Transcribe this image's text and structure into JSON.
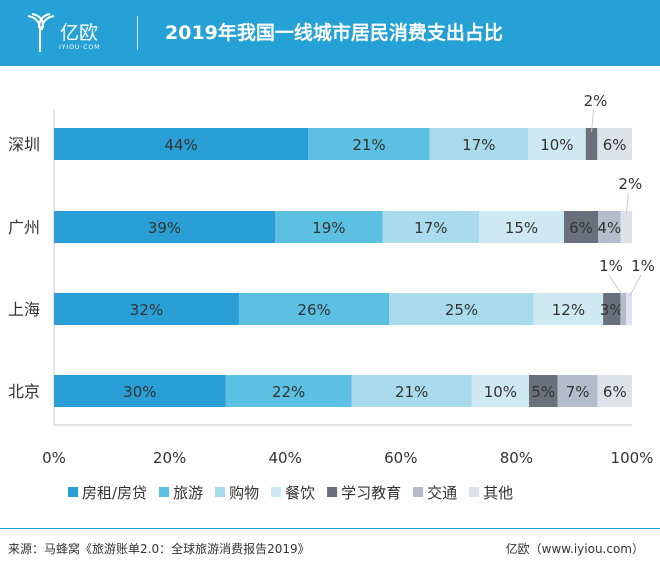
{
  "header": {
    "logo_text": "亿欧",
    "logo_sub": "IYIOU·COM",
    "title": "2019年我国一线城市居民消费支出占比"
  },
  "footer": {
    "source": "来源：马蜂窝《旅游账单2.0：全球旅游消费报告2019》",
    "brand": "亿欧（www.iyiou.com）"
  },
  "chart_data": {
    "type": "bar",
    "orientation": "horizontal",
    "stacked": true,
    "categories": [
      "深圳",
      "广州",
      "上海",
      "北京"
    ],
    "series": [
      {
        "name": "房租/房贷",
        "color": "#2a9fd6",
        "values": [
          44,
          39,
          32,
          30
        ]
      },
      {
        "name": "旅游",
        "color": "#5bc0e2",
        "values": [
          21,
          19,
          26,
          22
        ]
      },
      {
        "name": "购物",
        "color": "#a9dbec",
        "values": [
          17,
          17,
          25,
          21
        ]
      },
      {
        "name": "餐饮",
        "color": "#cfe9f3",
        "values": [
          10,
          15,
          12,
          10
        ]
      },
      {
        "name": "学习教育",
        "color": "#69707c",
        "values": [
          2,
          6,
          3,
          5
        ]
      },
      {
        "name": "交通",
        "color": "#b3bccb",
        "values": [
          null,
          4,
          1,
          7
        ]
      },
      {
        "name": "其他",
        "color": "#dde2ea",
        "values": [
          6,
          2,
          1,
          6
        ]
      }
    ],
    "xticks": [
      "0%",
      "20%",
      "40%",
      "60%",
      "80%",
      "100%"
    ],
    "xlim": [
      0,
      100
    ],
    "legend": "bottom",
    "grid": false
  }
}
